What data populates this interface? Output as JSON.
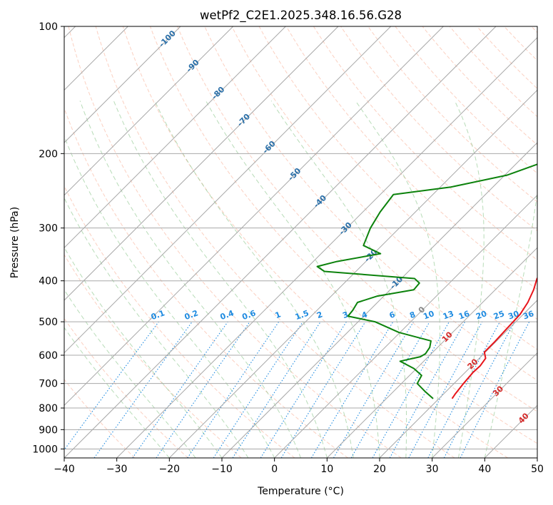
{
  "chart_data": {
    "type": "line",
    "subtype": "skew-t log-p diagram",
    "title": "wetPf2_C2E1.2025.348.16.56.G28",
    "xlabel": "Temperature (°C)",
    "ylabel": "Pressure (hPa)",
    "xlim": [
      -40,
      50
    ],
    "ylim": [
      1050,
      100
    ],
    "x_ticks": [
      -40,
      -30,
      -20,
      -10,
      0,
      10,
      20,
      30,
      40,
      50
    ],
    "y_ticks": [
      1000,
      900,
      800,
      700,
      600,
      500,
      400,
      300,
      200,
      100
    ],
    "isotherm_labels": [
      {
        "label": "-100",
        "t": -100
      },
      {
        "label": "-90",
        "t": -90
      },
      {
        "label": "-80",
        "t": -80
      },
      {
        "label": "-70",
        "t": -70
      },
      {
        "label": "-60",
        "t": -60
      },
      {
        "label": "-50",
        "t": -50
      },
      {
        "label": "-40",
        "t": -40
      },
      {
        "label": "-30",
        "t": -30
      },
      {
        "label": "-20",
        "t": -20
      },
      {
        "label": "-10",
        "t": -10
      },
      {
        "label": "0",
        "t": 0
      },
      {
        "label": "10",
        "t": 10
      },
      {
        "label": "20",
        "t": 20
      },
      {
        "label": "30",
        "t": 30
      },
      {
        "label": "40",
        "t": 40
      }
    ],
    "mixing_ratio_labels": [
      "0.1",
      "0.2",
      "0.4",
      "0.6",
      "1",
      "1.5",
      "2",
      "3",
      "4",
      "6",
      "8",
      "10",
      "13",
      "16",
      "20",
      "25",
      "30",
      "36"
    ],
    "mixing_ratio_values": [
      0.1,
      0.2,
      0.4,
      0.6,
      1,
      1.5,
      2,
      3,
      4,
      6,
      8,
      10,
      13,
      16,
      20,
      25,
      30,
      36
    ],
    "series": [
      {
        "name": "Temperature",
        "color": "#e8141a",
        "points": [
          {
            "p": 760,
            "t": 22.5
          },
          {
            "p": 740,
            "t": 22.2
          },
          {
            "p": 700,
            "t": 21.8
          },
          {
            "p": 660,
            "t": 21.5
          },
          {
            "p": 635,
            "t": 21.6
          },
          {
            "p": 610,
            "t": 21.2
          },
          {
            "p": 590,
            "t": 19.8
          },
          {
            "p": 560,
            "t": 19.8
          },
          {
            "p": 520,
            "t": 19.6
          },
          {
            "p": 480,
            "t": 19.4
          },
          {
            "p": 450,
            "t": 18.6
          },
          {
            "p": 420,
            "t": 17.3
          },
          {
            "p": 395,
            "t": 15.8
          },
          {
            "p": 370,
            "t": 15.4
          },
          {
            "p": 345,
            "t": 13.4
          },
          {
            "p": 320,
            "t": 11.7
          },
          {
            "p": 295,
            "t": 9.5
          },
          {
            "p": 270,
            "t": 8.0
          },
          {
            "p": 245,
            "t": 6.2
          },
          {
            "p": 220,
            "t": 3.8
          },
          {
            "p": 200,
            "t": 1.8
          },
          {
            "p": 180,
            "t": 0.0
          },
          {
            "p": 165,
            "t": -1.4
          },
          {
            "p": 150,
            "t": -2.2
          },
          {
            "p": 137,
            "t": 0.0
          },
          {
            "p": 127,
            "t": 1.9
          },
          {
            "p": 118,
            "t": 3.1
          },
          {
            "p": 108,
            "t": 3.3
          },
          {
            "p": 100,
            "t": 3.5
          }
        ]
      },
      {
        "name": "Dewpoint",
        "color": "#0c820c",
        "points": [
          {
            "p": 760,
            "t": 18.9
          },
          {
            "p": 730,
            "t": 15.9
          },
          {
            "p": 700,
            "t": 13.0
          },
          {
            "p": 670,
            "t": 12.3
          },
          {
            "p": 645,
            "t": 9.5
          },
          {
            "p": 620,
            "t": 5.5
          },
          {
            "p": 605,
            "t": 8.5
          },
          {
            "p": 595,
            "t": 8.9
          },
          {
            "p": 575,
            "t": 8.5
          },
          {
            "p": 555,
            "t": 7.5
          },
          {
            "p": 530,
            "t": -0.2
          },
          {
            "p": 500,
            "t": -6.8
          },
          {
            "p": 485,
            "t": -13.0
          },
          {
            "p": 470,
            "t": -13.2
          },
          {
            "p": 450,
            "t": -13.8
          },
          {
            "p": 435,
            "t": -11.3
          },
          {
            "p": 420,
            "t": -5.5
          },
          {
            "p": 405,
            "t": -5.7
          },
          {
            "p": 395,
            "t": -7.5
          },
          {
            "p": 380,
            "t": -26.0
          },
          {
            "p": 370,
            "t": -28.3
          },
          {
            "p": 360,
            "t": -25.5
          },
          {
            "p": 345,
            "t": -18.7
          },
          {
            "p": 330,
            "t": -23.5
          },
          {
            "p": 300,
            "t": -25.5
          },
          {
            "p": 275,
            "t": -26.7
          },
          {
            "p": 250,
            "t": -27.5
          },
          {
            "p": 240,
            "t": -18.0
          },
          {
            "p": 225,
            "t": -9.6
          },
          {
            "p": 210,
            "t": -5.3
          },
          {
            "p": 195,
            "t": -2.7
          },
          {
            "p": 175,
            "t": -1.8
          },
          {
            "p": 160,
            "t": -2.0
          },
          {
            "p": 145,
            "t": -2.7
          },
          {
            "p": 137,
            "t": -2.0
          },
          {
            "p": 130,
            "t": -2.3
          },
          {
            "p": 122,
            "t": -3.6
          },
          {
            "p": 115,
            "t": -3.6
          },
          {
            "p": 106,
            "t": 0.2
          },
          {
            "p": 100,
            "t": 2.7
          }
        ]
      }
    ]
  }
}
